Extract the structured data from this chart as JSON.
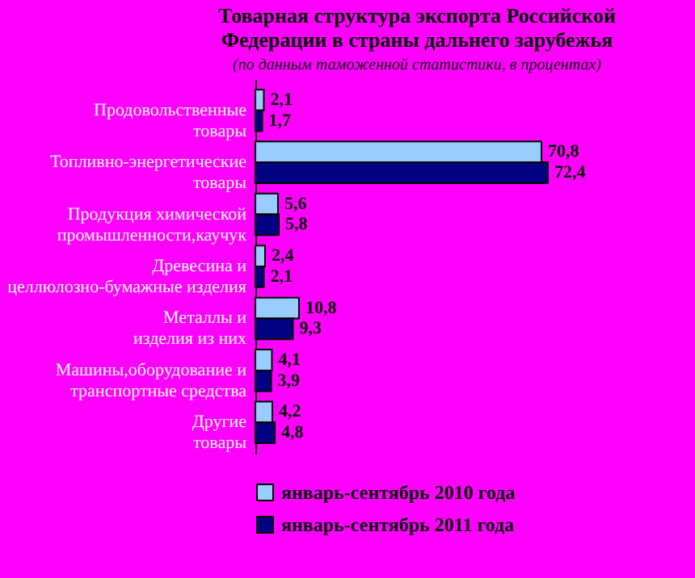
{
  "chart_data": {
    "type": "bar",
    "orientation": "horizontal",
    "title": "Товарная структура экспорта Российской Федерации в страны дальнего зарубежья",
    "subtitle": "(по данным таможенной статистики, в процентах)",
    "categories": [
      "Продовольственные товары",
      "Топливно-энергетические товары",
      "Продукция химической промышленности,каучук",
      "Древесина и целлюлозно-бумажные изделия",
      "Металлы и изделия из них",
      "Машины,оборудование и транспортные средства",
      "Другие товары"
    ],
    "series": [
      {
        "name": "январь-сентябрь 2010 года",
        "color": "#99ccff",
        "values": [
          2.1,
          70.8,
          5.6,
          2.4,
          10.8,
          4.1,
          4.2
        ],
        "value_labels": [
          "2,1",
          "70,8",
          "5,6",
          "2,4",
          "10,8",
          "4,1",
          "4,2"
        ]
      },
      {
        "name": "январь-сентябрь 2011 года",
        "color": "#000080",
        "values": [
          1.7,
          72.4,
          5.8,
          2.1,
          9.3,
          3.9,
          4.8
        ],
        "value_labels": [
          "1,7",
          "72,4",
          "5,8",
          "2,1",
          "9,3",
          "3,9",
          "4,8"
        ]
      }
    ],
    "legend": "bottom",
    "grid": false
  }
}
